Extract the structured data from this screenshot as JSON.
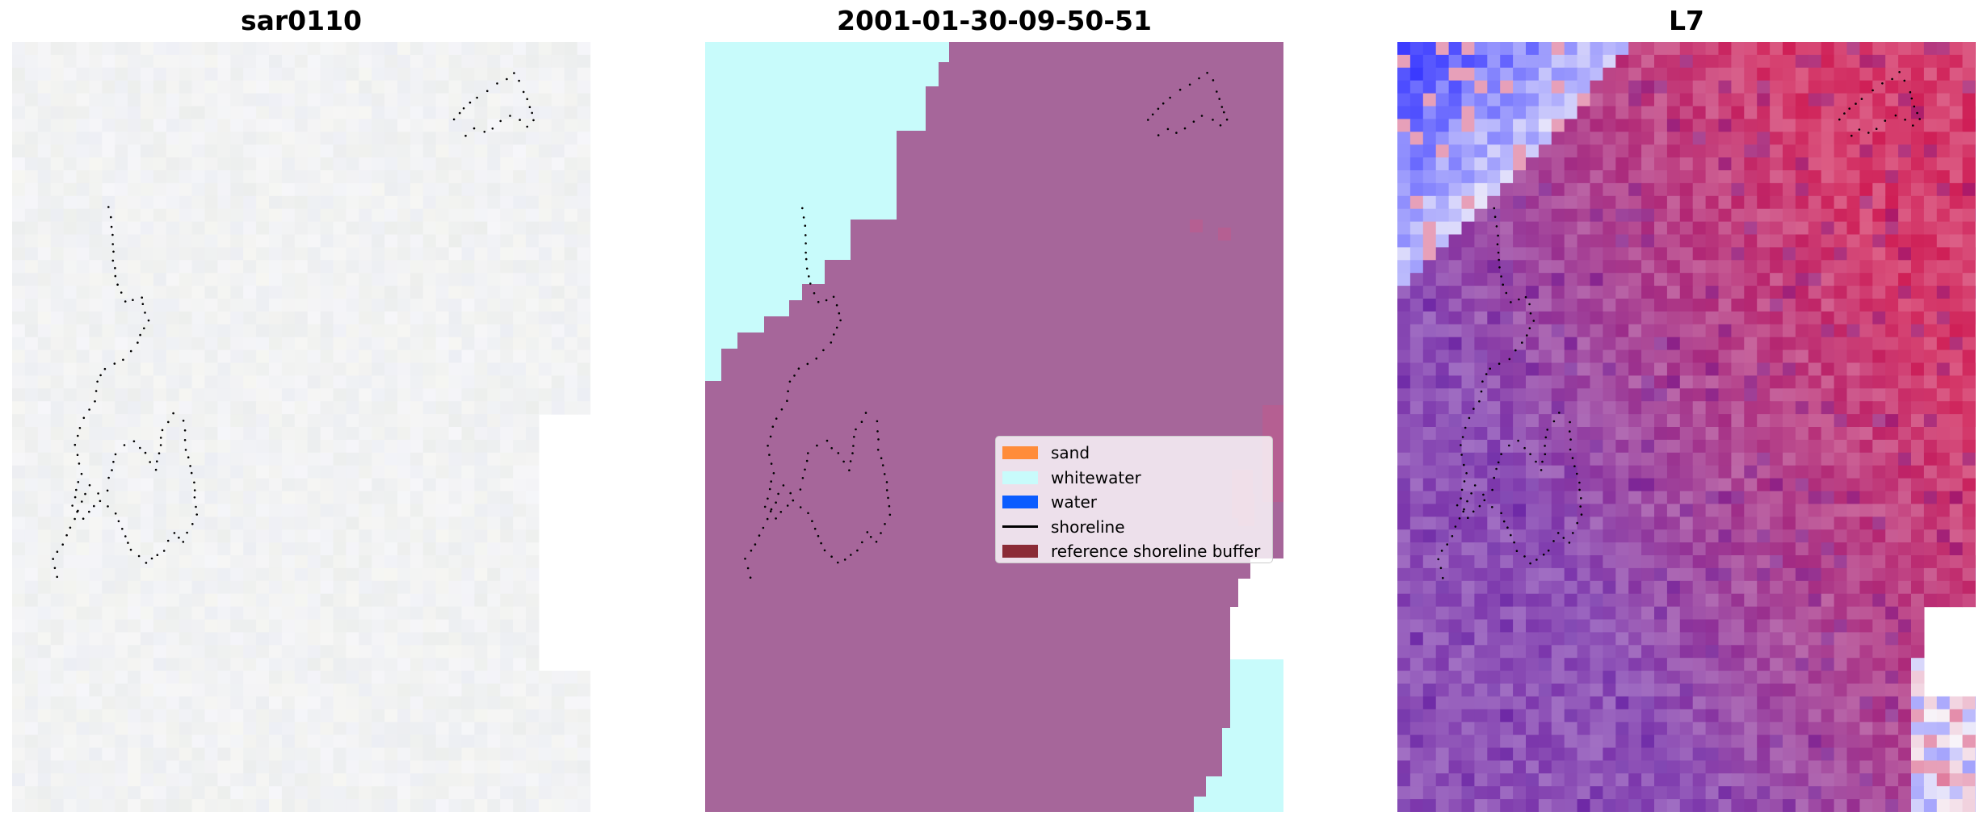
{
  "panels": [
    {
      "title": "sar0110"
    },
    {
      "title": "2001-01-30-09-50-51"
    },
    {
      "title": "L7"
    }
  ],
  "legend": {
    "items": [
      {
        "label": "sand",
        "color": "#ff8c3a",
        "kind": "patch"
      },
      {
        "label": "whitewater",
        "color": "#c8fbfb",
        "kind": "patch"
      },
      {
        "label": "water",
        "color": "#0a5cff",
        "kind": "patch"
      },
      {
        "label": "shoreline",
        "color": "#000000",
        "kind": "line"
      },
      {
        "label": "reference shoreline buffer",
        "color": "#8b2b36",
        "kind": "patch"
      }
    ]
  },
  "colors": {
    "classified_sand_buffer": "#a6669a",
    "classified_whitewater": "#c8fbfb",
    "classified_nodata": "#ffffff",
    "sar_background": "#f3f4f2",
    "index_positive": "#c8003f",
    "index_negative": "#3a3aff",
    "index_buffer_tint": "#6a1ba0",
    "shoreline_points": "#000000"
  }
}
